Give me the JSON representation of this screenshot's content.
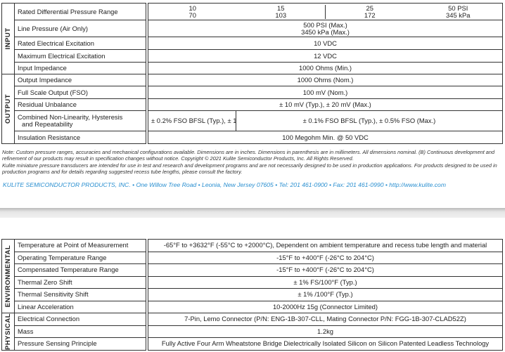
{
  "page1": {
    "sections": {
      "input": "INPUT",
      "output": "OUTPUT"
    },
    "rows": [
      {
        "label": "Rated Differential Pressure Range",
        "ranges": [
          [
            "10",
            "70"
          ],
          [
            "15",
            "103"
          ],
          [
            "25",
            "172"
          ],
          [
            "50 PSI",
            "345 kPa"
          ]
        ]
      },
      {
        "label": "Line Pressure (Air Only)",
        "value": [
          "500 PSI (Max.)",
          "3450 kPa (Max.)"
        ]
      },
      {
        "label": "Rated Electrical Excitation",
        "value": "10 VDC"
      },
      {
        "label": "Maximum Electrical Excitation",
        "value": "12 VDC"
      },
      {
        "label": "Input Impedance",
        "value": "1000 Ohms (Min.)"
      },
      {
        "label": "Output Impedance",
        "value": "1000 Ohms (Nom.)"
      },
      {
        "label": "Full Scale Output (FSO)",
        "value": "100 mV (Nom.)"
      },
      {
        "label": "Residual Unbalance",
        "value": "± 10 mV (Typ.), ± 20 mV (Max.)"
      },
      {
        "label": [
          "Combined Non-Linearity, Hysteresis",
          "and Repeatability"
        ],
        "values": [
          "± 0.2% FSO BFSL (Typ.), ± 1% FSO BFSL (Max.)",
          "± 0.1% FSO BFSL (Typ.), ± 0.5% FSO (Max.)"
        ]
      },
      {
        "label": "Insulation Resistance",
        "value": "100 Megohm Min. @ 50 VDC"
      }
    ],
    "note": "Note: Custom pressure ranges, accuracies and mechanical configurations available.   Dimensions are in inches. Dimensions in parenthesis are in millimeters. All dimensions nominal.  (B) Continuous development and refinement of our products may result in specification changes without notice.  Copyright © 2021 Kulite Semiconductor Products, Inc. All Rights Reserved.",
    "note2": "Kulite miniature pressure transducers are intended for use in test and research and development programs and are not necessarily designed to be used in production applications. For products designed to be used in production programs and for details regarding suggested recess tube lengths, please consult the factory.",
    "company": "KULITE SEMICONDUCTOR PRODUCTS, INC.  •  One Willow Tree Road  •  Leonia, New Jersey 07605  •  Tel: 201 461-0900   •  Fax: 201 461-0990  •  http://www.kulite.com",
    "company_color": "#2a8fd0"
  },
  "page2": {
    "sections": {
      "environmental": "ENVIRONMENTAL",
      "physical": "PHYSICAL"
    },
    "rows": [
      {
        "label": "Temperature at Point of Measurement",
        "value": "-65°F to +3632°F (-55°C to +2000°C), Dependent on ambient temperature and recess tube length and material"
      },
      {
        "label": "Operating Temperature Range",
        "value": "-15°F to +400°F (-26°C to 204°C)"
      },
      {
        "label": "Compensated Temperature Range",
        "value": "-15°F to +400°F (-26°C to 204°C)"
      },
      {
        "label": "Thermal Zero Shift",
        "value": "± 1% FS/100°F (Typ.)"
      },
      {
        "label": "Thermal Sensitivity Shift",
        "value": "± 1% /100°F (Typ.)"
      },
      {
        "label": "Linear Acceleration",
        "value": "10-2000Hz 15g (Connector Limited)"
      },
      {
        "label": "Electrical Connection",
        "value": "7-Pin, Lemo Connector (P/N: ENG-1B-307-CLL, Mating Connector P/N: FGG-1B-307-CLAD52Z)"
      },
      {
        "label": "Mass",
        "value": "1.2kg"
      },
      {
        "label": "Pressure Sensing Principle",
        "value": "Fully Active Four Arm Wheatstone Bridge Dielectrically Isolated Silicon on Silicon Patented Leadless Technology"
      }
    ]
  }
}
